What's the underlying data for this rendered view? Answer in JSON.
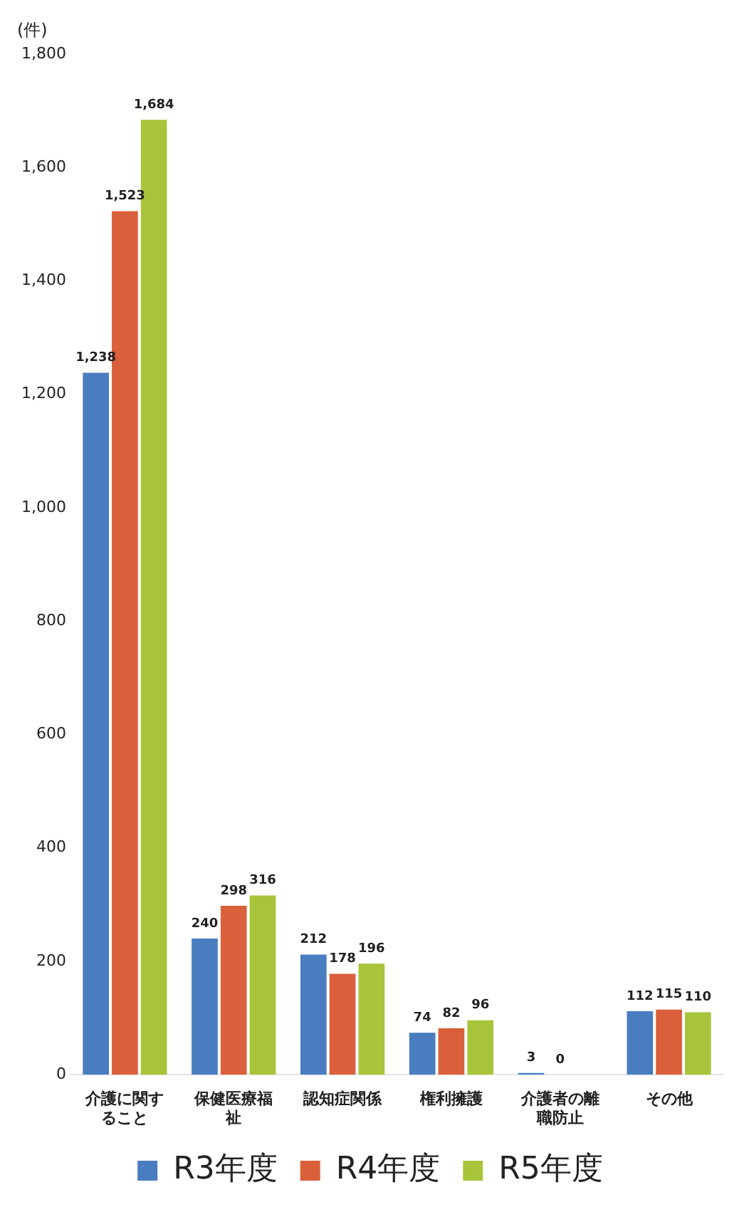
{
  "chart_data": {
    "type": "bar",
    "ylabel": "(件)",
    "categories": [
      "介護に関すること",
      "保健医療福祉",
      "認知症関係",
      "権利擁護",
      "介護者の離職防止",
      "その他"
    ],
    "series": [
      {
        "name": "R3年度",
        "color": "#4a7cc0",
        "values": [
          1238,
          240,
          212,
          74,
          3,
          112
        ],
        "value_labels": [
          "1,238",
          "240",
          "212",
          "74",
          "3",
          "112"
        ]
      },
      {
        "name": "R4年度",
        "color": "#d9603a",
        "values": [
          1523,
          298,
          178,
          82,
          0,
          115
        ],
        "value_labels": [
          "1,523",
          "298",
          "178",
          "82",
          "0",
          "115"
        ]
      },
      {
        "name": "R5年度",
        "color": "#a8c43a",
        "values": [
          1684,
          316,
          196,
          96,
          0,
          110
        ],
        "value_labels": [
          "1,684",
          "316",
          "196",
          "96",
          null,
          "110"
        ]
      }
    ],
    "ylim": [
      0,
      1800
    ],
    "yticks": [
      0,
      200,
      400,
      600,
      800,
      {
        "value": 1000,
        "label": "1,000"
      },
      {
        "value": 1200,
        "label": "1,200"
      },
      {
        "value": 1400,
        "label": "1,400"
      },
      {
        "value": 1600,
        "label": "1,600"
      },
      {
        "value": 1800,
        "label": "1,800"
      }
    ],
    "grid": false,
    "legend": "bottom"
  }
}
